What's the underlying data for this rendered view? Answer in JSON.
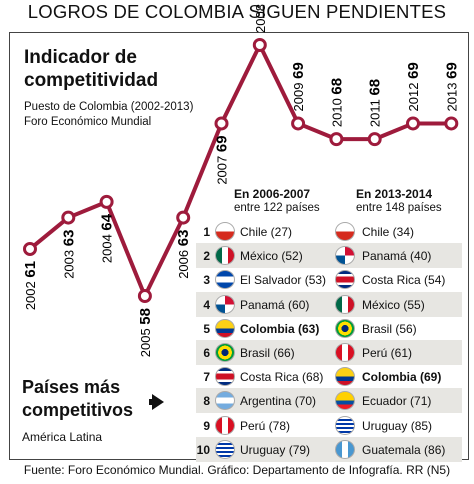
{
  "title": "LOGROS DE COLOMBIA SIGUEN PENDIENTES",
  "indicator": {
    "line1": "Indicador de",
    "line2": "competitividad"
  },
  "subtitle": {
    "line1": "Puesto de Colombia (2002-2013)",
    "line2": "Foro Económico Mundial"
  },
  "chart_data": {
    "type": "line",
    "x": [
      "2002",
      "2003",
      "2004",
      "2005",
      "2006",
      "2007",
      "2008",
      "2009",
      "2010",
      "2011",
      "2012",
      "2013"
    ],
    "values": [
      61,
      63,
      64,
      58,
      63,
      69,
      74,
      69,
      68,
      68,
      69,
      69
    ],
    "yaxis_inverted": true,
    "line_color": "#9e1b3c"
  },
  "table": {
    "left_header": {
      "title": "En 2006-2007",
      "sub": "entre 122 países"
    },
    "right_header": {
      "title": "En 2013-2014",
      "sub": "entre 148 países"
    },
    "rows": [
      {
        "rank": "1",
        "left": "Chile (27)",
        "left_flag": "chile",
        "right": "Chile (34)",
        "right_flag": "chile"
      },
      {
        "rank": "2",
        "left": "México (52)",
        "left_flag": "mexico",
        "right": "Panamá (40)",
        "right_flag": "panama"
      },
      {
        "rank": "3",
        "left": "El Salvador (53)",
        "left_flag": "elsalvador",
        "right": "Costa Rica (54)",
        "right_flag": "costarica"
      },
      {
        "rank": "4",
        "left": "Panamá (60)",
        "left_flag": "panama",
        "right": "México (55)",
        "right_flag": "mexico"
      },
      {
        "rank": "5",
        "left": "Colombia (63)",
        "left_flag": "colombia",
        "right": "Brasil (56)",
        "right_flag": "brasil",
        "left_bold": true
      },
      {
        "rank": "6",
        "left": "Brasil (66)",
        "left_flag": "brasil",
        "right": "Perú (61)",
        "right_flag": "peru"
      },
      {
        "rank": "7",
        "left": "Costa Rica (68)",
        "left_flag": "costarica",
        "right": "Colombia (69)",
        "right_flag": "colombia",
        "right_bold": true
      },
      {
        "rank": "8",
        "left": "Argentina (70)",
        "left_flag": "argentina",
        "right": "Ecuador (71)",
        "right_flag": "ecuador"
      },
      {
        "rank": "9",
        "left": "Perú (78)",
        "left_flag": "peru",
        "right": "Uruguay (85)",
        "right_flag": "uruguay"
      },
      {
        "rank": "10",
        "left": "Uruguay (79)",
        "left_flag": "uruguay",
        "right": "Guatemala (86)",
        "right_flag": "guatemala"
      }
    ]
  },
  "paises": {
    "line1": "Países más",
    "line2": "competitivos"
  },
  "region": "América Latina",
  "source": "Fuente: Foro Económico Mundial. Gráfico: Departamento de Infografía. RR (N5)"
}
